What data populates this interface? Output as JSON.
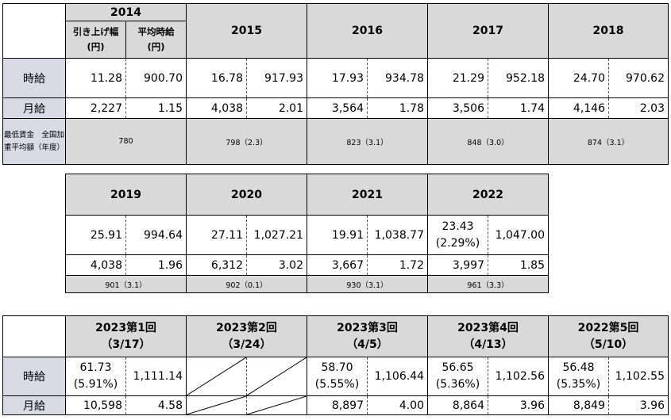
{
  "table1": {
    "years": [
      "2014",
      "2015",
      "2016",
      "2017",
      "2018"
    ],
    "sub_headers": {
      "raise": "引き上げ幅",
      "avg": "平均時給",
      "unit": "(円)"
    },
    "row_labels": {
      "hourly": "時給",
      "monthly": "月給",
      "min_wage": "最低賃金　全国加重平均額（年度）"
    },
    "hourly": [
      [
        "11.28",
        "900.70"
      ],
      [
        "16.78",
        "917.93"
      ],
      [
        "17.93",
        "934.78"
      ],
      [
        "21.29",
        "952.18"
      ],
      [
        "24.70",
        "970.62"
      ]
    ],
    "monthly": [
      [
        "2,227",
        "1.15"
      ],
      [
        "4,038",
        "2.01"
      ],
      [
        "3,564",
        "1.78"
      ],
      [
        "3,506",
        "1.74"
      ],
      [
        "4,146",
        "2.03"
      ]
    ],
    "min_wage": [
      "780",
      "798（2.3）",
      "823（3.1）",
      "848（3.0）",
      "874（3.1）"
    ]
  },
  "table2": {
    "years": [
      "2019",
      "2020",
      "2021",
      "2022"
    ],
    "hourly": [
      [
        "25.91",
        "994.64"
      ],
      [
        "27.11",
        "1,027.21"
      ],
      [
        "19.91",
        "1,038.77"
      ],
      [
        "23.43",
        "1,047.00"
      ]
    ],
    "hourly_extra_2022": "(2.29%)",
    "monthly": [
      [
        "4,038",
        "1.96"
      ],
      [
        "6,312",
        "3.02"
      ],
      [
        "3,667",
        "1.72"
      ],
      [
        "3,997",
        "1.85"
      ]
    ],
    "min_wage": [
      "901（3.1）",
      "902（0.1）",
      "930（3.1）",
      "961（3.3）"
    ]
  },
  "table3": {
    "headers": [
      {
        "line1": "2023第1回",
        "line2": "（3/17）"
      },
      {
        "line1": "2023第2回",
        "line2": "（3/24）"
      },
      {
        "line1": "2023第3回",
        "line2": "（4/5）"
      },
      {
        "line1": "2023第4回",
        "line2": "（4/13）"
      },
      {
        "line1": "2022第5回",
        "line2": "（5/10）"
      }
    ],
    "row_labels": {
      "hourly": "時給",
      "monthly": "月給"
    },
    "hourly": [
      {
        "raise": "61.73",
        "pct": "(5.91%)",
        "avg": "1,111.14"
      },
      null,
      {
        "raise": "58.70",
        "pct": "(5.55%)",
        "avg": "1,106.44"
      },
      {
        "raise": "56.65",
        "pct": "(5.36%)",
        "avg": "1,102.56"
      },
      {
        "raise": "56.48",
        "pct": "(5.35%)",
        "avg": "1,102.55"
      }
    ],
    "monthly": [
      [
        "10,598",
        "4.58"
      ],
      null,
      [
        "8,897",
        "4.00"
      ],
      [
        "8,864",
        "3.96"
      ],
      [
        "8,849",
        "3.96"
      ]
    ]
  }
}
